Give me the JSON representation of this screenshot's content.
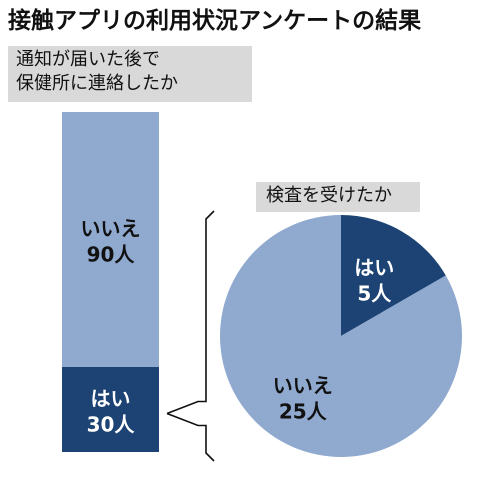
{
  "title": "接触アプリの利用状況アンケートの結果",
  "chart_data": [
    {
      "type": "bar",
      "subtype": "stacked-100",
      "title_lines": [
        "通知が届いた後で",
        "保健所に連絡したか"
      ],
      "categories": [
        "通知が届いた後で保健所に連絡したか"
      ],
      "series": [
        {
          "name": "いいえ",
          "value": 90,
          "label": "90人",
          "color": "#8fa9cf",
          "text_color": "#111111"
        },
        {
          "name": "はい",
          "value": 30,
          "label": "30人",
          "color": "#1c4373",
          "text_color": "#ffffff"
        }
      ],
      "unit": "人",
      "total": 120
    },
    {
      "type": "pie",
      "title": "検査を受けたか",
      "slices": [
        {
          "name": "はい",
          "value": 5,
          "label": "5人",
          "color": "#1c4373",
          "text_color": "#ffffff"
        },
        {
          "name": "いいえ",
          "value": 25,
          "label": "25人",
          "color": "#8fa9cf",
          "text_color": "#111111"
        }
      ],
      "unit": "人",
      "total": 30,
      "start_angle_deg": 0,
      "direction": "clockwise"
    }
  ],
  "colors": {
    "light": "#8fa9cf",
    "dark": "#1c4373",
    "connector": "#111111",
    "question_bg": "#d9d9d9"
  }
}
